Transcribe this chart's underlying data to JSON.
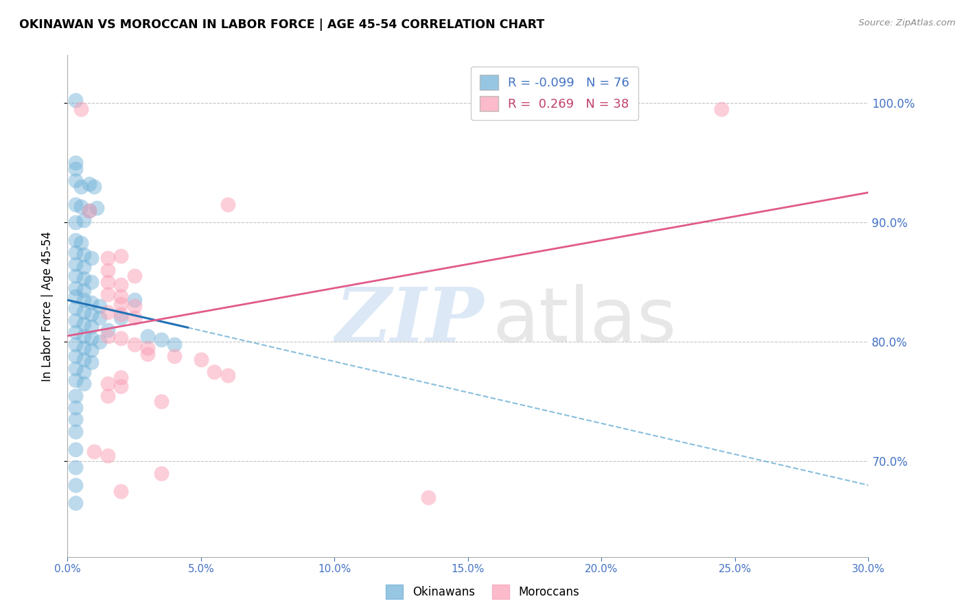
{
  "title": "OKINAWAN VS MOROCCAN IN LABOR FORCE | AGE 45-54 CORRELATION CHART",
  "source": "Source: ZipAtlas.com",
  "xlabel_ticks": [
    "0.0%",
    "5.0%",
    "10.0%",
    "15.0%",
    "20.0%",
    "25.0%",
    "30.0%"
  ],
  "xlabel_vals": [
    0.0,
    5.0,
    10.0,
    15.0,
    20.0,
    25.0,
    30.0
  ],
  "ylabel_ticks": [
    "70.0%",
    "80.0%",
    "90.0%",
    "100.0%"
  ],
  "ylabel_vals": [
    70.0,
    80.0,
    90.0,
    100.0
  ],
  "xlim": [
    0.0,
    30.0
  ],
  "ylim": [
    62.0,
    104.0
  ],
  "legend_blue_R": "-0.099",
  "legend_blue_N": "76",
  "legend_pink_R": "0.269",
  "legend_pink_N": "38",
  "blue_color": "#6baed6",
  "pink_color": "#fa9fb5",
  "blue_line_color": "#2171b5",
  "pink_line_color": "#e05a8a",
  "blue_dots": [
    [
      0.3,
      100.2
    ],
    [
      0.3,
      95.0
    ],
    [
      0.3,
      94.5
    ],
    [
      0.3,
      93.5
    ],
    [
      0.5,
      93.0
    ],
    [
      0.8,
      93.2
    ],
    [
      1.0,
      93.0
    ],
    [
      0.3,
      91.5
    ],
    [
      0.5,
      91.3
    ],
    [
      0.8,
      91.0
    ],
    [
      1.1,
      91.2
    ],
    [
      0.3,
      90.0
    ],
    [
      0.6,
      90.2
    ],
    [
      0.3,
      88.5
    ],
    [
      0.5,
      88.3
    ],
    [
      0.3,
      87.5
    ],
    [
      0.6,
      87.3
    ],
    [
      0.9,
      87.0
    ],
    [
      0.3,
      86.5
    ],
    [
      0.6,
      86.3
    ],
    [
      0.3,
      85.5
    ],
    [
      0.6,
      85.3
    ],
    [
      0.9,
      85.0
    ],
    [
      0.3,
      84.5
    ],
    [
      0.6,
      84.3
    ],
    [
      0.3,
      83.8
    ],
    [
      0.6,
      83.5
    ],
    [
      0.9,
      83.3
    ],
    [
      1.2,
      83.0
    ],
    [
      0.3,
      82.8
    ],
    [
      0.6,
      82.5
    ],
    [
      0.9,
      82.3
    ],
    [
      1.2,
      82.0
    ],
    [
      2.0,
      82.0
    ],
    [
      0.3,
      81.8
    ],
    [
      0.6,
      81.5
    ],
    [
      0.9,
      81.3
    ],
    [
      1.5,
      81.0
    ],
    [
      0.3,
      80.8
    ],
    [
      0.6,
      80.5
    ],
    [
      0.9,
      80.3
    ],
    [
      1.2,
      80.0
    ],
    [
      3.0,
      80.5
    ],
    [
      0.3,
      79.8
    ],
    [
      0.6,
      79.5
    ],
    [
      0.9,
      79.3
    ],
    [
      0.3,
      78.8
    ],
    [
      0.6,
      78.5
    ],
    [
      0.9,
      78.3
    ],
    [
      0.3,
      77.8
    ],
    [
      0.6,
      77.5
    ],
    [
      0.3,
      76.8
    ],
    [
      0.6,
      76.5
    ],
    [
      0.3,
      75.5
    ],
    [
      0.3,
      74.5
    ],
    [
      0.3,
      73.5
    ],
    [
      0.3,
      72.5
    ],
    [
      0.3,
      71.0
    ],
    [
      0.3,
      69.5
    ],
    [
      0.3,
      68.0
    ],
    [
      0.3,
      66.5
    ],
    [
      2.5,
      83.5
    ],
    [
      3.5,
      80.2
    ],
    [
      4.0,
      79.8
    ]
  ],
  "pink_dots": [
    [
      0.5,
      99.5
    ],
    [
      24.5,
      99.5
    ],
    [
      6.0,
      91.5
    ],
    [
      0.8,
      91.0
    ],
    [
      1.5,
      87.0
    ],
    [
      2.0,
      87.2
    ],
    [
      1.5,
      86.0
    ],
    [
      2.5,
      85.5
    ],
    [
      1.5,
      85.0
    ],
    [
      2.0,
      84.8
    ],
    [
      1.5,
      84.0
    ],
    [
      2.0,
      83.8
    ],
    [
      2.0,
      83.2
    ],
    [
      2.5,
      83.0
    ],
    [
      1.5,
      82.5
    ],
    [
      2.0,
      82.3
    ],
    [
      2.5,
      82.0
    ],
    [
      1.5,
      80.5
    ],
    [
      2.0,
      80.3
    ],
    [
      2.5,
      79.8
    ],
    [
      3.0,
      79.5
    ],
    [
      3.0,
      79.0
    ],
    [
      4.0,
      78.8
    ],
    [
      5.0,
      78.5
    ],
    [
      5.5,
      77.5
    ],
    [
      6.0,
      77.2
    ],
    [
      2.0,
      77.0
    ],
    [
      1.5,
      76.5
    ],
    [
      2.0,
      76.3
    ],
    [
      1.5,
      75.5
    ],
    [
      3.5,
      75.0
    ],
    [
      1.0,
      70.8
    ],
    [
      1.5,
      70.5
    ],
    [
      3.5,
      69.0
    ],
    [
      2.0,
      67.5
    ],
    [
      13.5,
      67.0
    ]
  ],
  "blue_trend_x0": 0.0,
  "blue_trend_y0": 83.5,
  "blue_trend_x1": 4.5,
  "blue_trend_y1": 81.2,
  "blue_dash_x0": 4.5,
  "blue_dash_y0": 81.2,
  "blue_dash_x1": 30.0,
  "blue_dash_y1": 68.0,
  "pink_trend_x0": 0.0,
  "pink_trend_y0": 80.5,
  "pink_trend_x1": 30.0,
  "pink_trend_y1": 92.5
}
